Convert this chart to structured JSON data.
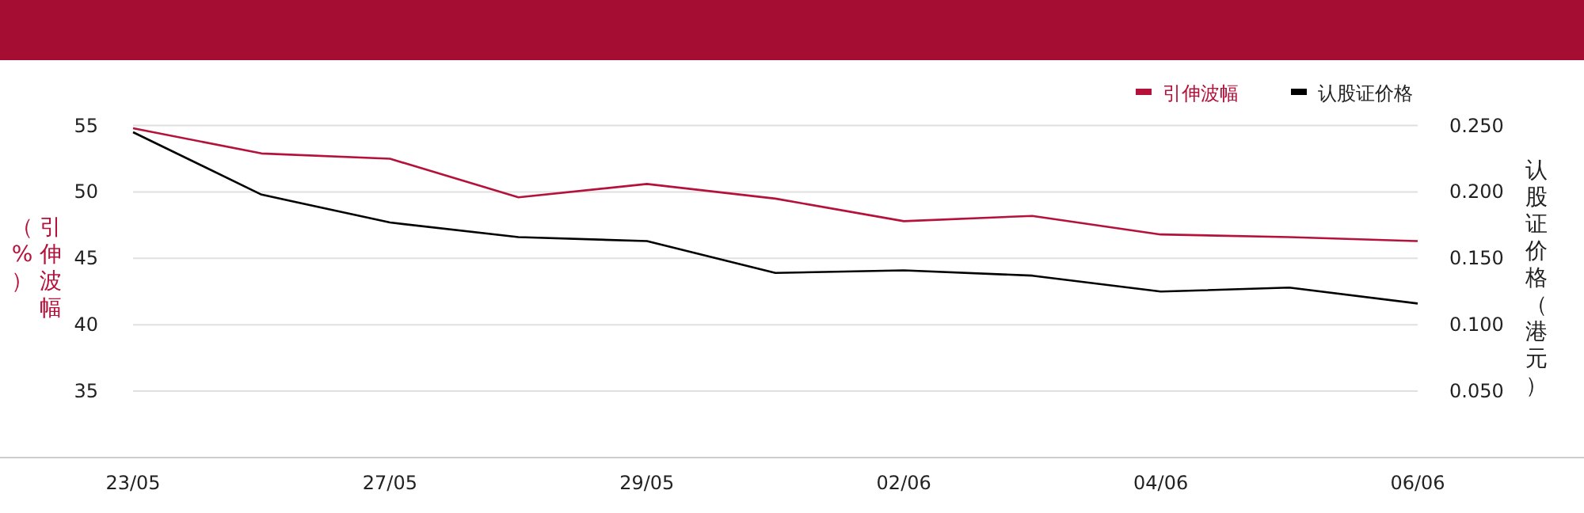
{
  "chart_data": {
    "type": "line",
    "ylabel": "引伸波幅（%）",
    "y2label": "认股证价格（港元）",
    "categories": [
      "23/05",
      null,
      "27/05",
      null,
      "29/05",
      null,
      "02/06",
      null,
      "04/06",
      null,
      "06/06"
    ],
    "series": [
      {
        "name": "引伸波幅",
        "color": "#b5123b",
        "values": [
          54.8,
          52.9,
          52.5,
          49.6,
          50.6,
          49.5,
          47.8,
          48.2,
          46.8,
          46.6,
          46.3
        ]
      },
      {
        "name": "认股证价格",
        "color": "#000000",
        "axis": "y2",
        "values": [
          0.245,
          0.198,
          0.177,
          0.166,
          0.163,
          0.139,
          0.141,
          0.137,
          0.125,
          0.128,
          0.116
        ]
      }
    ],
    "ylim": [
      30,
      55
    ],
    "yticks": [
      35,
      40,
      45,
      50,
      55
    ],
    "y2lim": [
      0,
      0.25
    ],
    "y2ticks": [
      {
        "value": 0.05,
        "label": "0.050"
      },
      {
        "value": 0.1,
        "label": "0.100"
      },
      {
        "value": 0.15,
        "label": "0.150"
      },
      {
        "value": 0.2,
        "label": "0.200"
      },
      {
        "value": 0.25,
        "label": "0.250"
      }
    ],
    "grid": "y",
    "legend": "top right",
    "marker": "none",
    "line_style": "solid"
  }
}
